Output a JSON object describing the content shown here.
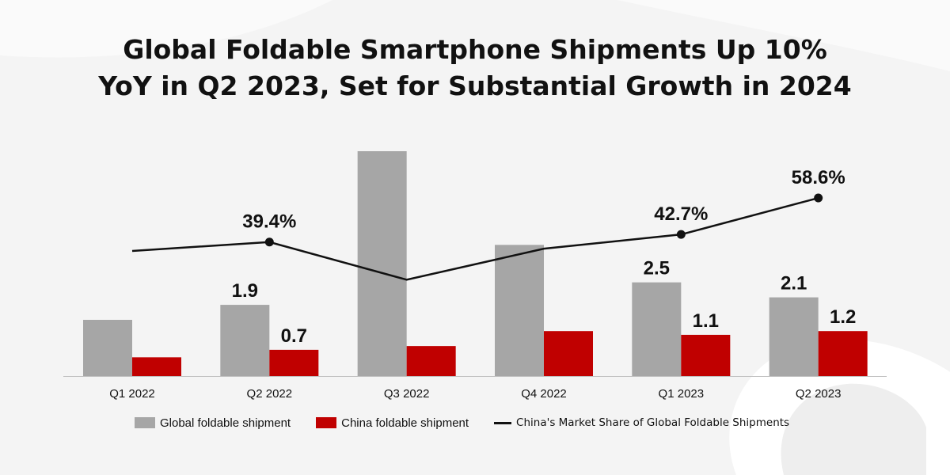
{
  "title_line1": "Global Foldable Smartphone Shipments Up 10%",
  "title_line2": "YoY in Q2 2023, Set for Substantial Growth in 2024",
  "colors": {
    "global": "#a6a6a6",
    "china": "#c00000",
    "line": "#111111",
    "background": "#f4f4f4"
  },
  "legend": {
    "global": "Global foldable shipment",
    "china": "China foldable shipment",
    "share": "China's Market Share of Global Foldable Shipments"
  },
  "chart_data": {
    "type": "bar",
    "categories": [
      "Q1 2022",
      "Q2 2022",
      "Q3 2022",
      "Q4 2022",
      "Q1 2023",
      "Q2 2023"
    ],
    "series": [
      {
        "name": "Global foldable shipment",
        "kind": "bar",
        "values": [
          1.5,
          1.9,
          6.0,
          3.5,
          2.5,
          2.1
        ],
        "labels": [
          "",
          "1.9",
          "",
          "",
          "2.5",
          "2.1"
        ]
      },
      {
        "name": "China foldable shipment",
        "kind": "bar",
        "values": [
          0.5,
          0.7,
          0.8,
          1.2,
          1.1,
          1.2
        ],
        "labels": [
          "",
          "0.7",
          "",
          "",
          "1.1",
          "1.2"
        ]
      },
      {
        "name": "China's Market Share of Global Foldable Shipments",
        "kind": "line",
        "values": [
          35.5,
          39.4,
          23.0,
          36.5,
          42.7,
          58.6
        ],
        "labels": [
          "",
          "39.4%",
          "",
          "",
          "42.7%",
          "58.6%"
        ],
        "markers": [
          false,
          true,
          false,
          false,
          true,
          true
        ]
      }
    ],
    "ylim": [
      0,
      6.0
    ],
    "share_ylim": [
      0,
      100
    ],
    "legend_position": "bottom",
    "grid": false
  }
}
